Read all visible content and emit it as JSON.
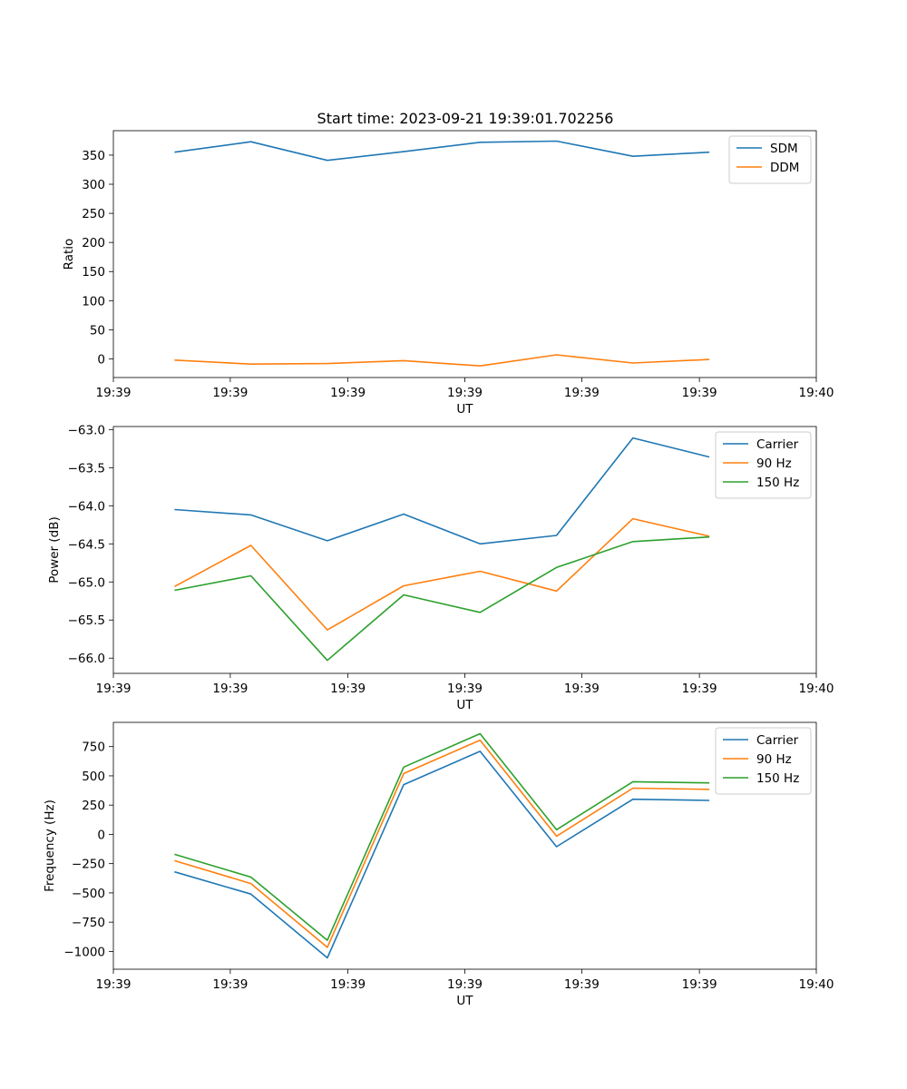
{
  "chart_data": [
    {
      "type": "line",
      "title": "Start time: 2023-09-21 19:39:01.702256",
      "xlabel": "UT",
      "ylabel": "Ratio",
      "x": [
        1,
        2,
        3,
        4,
        5,
        6,
        7,
        8
      ],
      "xlim": [
        0.2,
        9.4
      ],
      "xticks": [
        0.2,
        1.73,
        3.27,
        4.8,
        6.33,
        7.87,
        9.4
      ],
      "xtick_labels": [
        "19:39",
        "19:39",
        "19:39",
        "19:39",
        "19:39",
        "19:39",
        "19:40"
      ],
      "ylim": [
        -32,
        392
      ],
      "yticks": [
        0,
        50,
        100,
        150,
        200,
        250,
        300,
        350
      ],
      "ytick_labels": [
        "0",
        "50",
        "100",
        "150",
        "200",
        "250",
        "300",
        "350"
      ],
      "legend_position": "top-right",
      "series": [
        {
          "name": "SDM",
          "color": "#1f77b4",
          "values": [
            355,
            373,
            341,
            356,
            372,
            374,
            348,
            355
          ]
        },
        {
          "name": "DDM",
          "color": "#ff7f0e",
          "values": [
            -2,
            -9,
            -8,
            -3,
            -12,
            7,
            -7,
            -1
          ]
        }
      ]
    },
    {
      "type": "line",
      "title": "",
      "xlabel": "UT",
      "ylabel": "Power (dB)",
      "x": [
        1,
        2,
        3,
        4,
        5,
        6,
        7,
        8
      ],
      "xlim": [
        0.2,
        9.4
      ],
      "xticks": [
        0.2,
        1.73,
        3.27,
        4.8,
        6.33,
        7.87,
        9.4
      ],
      "xtick_labels": [
        "19:39",
        "19:39",
        "19:39",
        "19:39",
        "19:39",
        "19:39",
        "19:40"
      ],
      "ylim": [
        -66.2,
        -62.96
      ],
      "yticks": [
        -66.0,
        -65.5,
        -65.0,
        -64.5,
        -64.0,
        -63.5,
        -63.0
      ],
      "ytick_labels": [
        "−66.0",
        "−65.5",
        "−65.0",
        "−64.5",
        "−64.0",
        "−63.5",
        "−63.0"
      ],
      "legend_position": "top-right",
      "series": [
        {
          "name": "Carrier",
          "color": "#1f77b4",
          "values": [
            -64.05,
            -64.12,
            -64.46,
            -64.11,
            -64.5,
            -64.39,
            -63.11,
            -63.36
          ]
        },
        {
          "name": "90 Hz",
          "color": "#ff7f0e",
          "values": [
            -65.06,
            -64.52,
            -65.63,
            -65.05,
            -64.86,
            -65.12,
            -64.17,
            -64.4
          ]
        },
        {
          "name": "150 Hz",
          "color": "#2ca02c",
          "values": [
            -65.11,
            -64.92,
            -66.03,
            -65.17,
            -65.4,
            -64.81,
            -64.47,
            -64.41
          ]
        }
      ]
    },
    {
      "type": "line",
      "title": "",
      "xlabel": "UT",
      "ylabel": "Frequency (Hz)",
      "x": [
        1,
        2,
        3,
        4,
        5,
        6,
        7,
        8
      ],
      "xlim": [
        0.2,
        9.4
      ],
      "xticks": [
        0.2,
        1.73,
        3.27,
        4.8,
        6.33,
        7.87,
        9.4
      ],
      "xtick_labels": [
        "19:39",
        "19:39",
        "19:39",
        "19:39",
        "19:39",
        "19:39",
        "19:40"
      ],
      "ylim": [
        -1152,
        957
      ],
      "yticks": [
        -1000,
        -750,
        -500,
        -250,
        0,
        250,
        500,
        750
      ],
      "ytick_labels": [
        "−1000",
        "−750",
        "−500",
        "−250",
        "0",
        "250",
        "500",
        "750"
      ],
      "legend_position": "top-right",
      "series": [
        {
          "name": "Carrier",
          "color": "#1f77b4",
          "values": [
            -320,
            -510,
            -1055,
            425,
            710,
            -105,
            300,
            290
          ]
        },
        {
          "name": "90 Hz",
          "color": "#ff7f0e",
          "values": [
            -225,
            -420,
            -965,
            520,
            805,
            -15,
            395,
            385
          ]
        },
        {
          "name": "150 Hz",
          "color": "#2ca02c",
          "values": [
            -170,
            -365,
            -905,
            575,
            860,
            40,
            450,
            440
          ]
        }
      ]
    }
  ]
}
